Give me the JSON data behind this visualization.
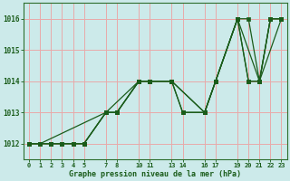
{
  "xlabel": "Graphe pression niveau de la mer (hPa)",
  "background_color": "#cceaea",
  "grid_color": "#e8aaaa",
  "line_color": "#1a5c1a",
  "spine_color": "#2d6e2d",
  "xlim": [
    -0.5,
    23.5
  ],
  "ylim": [
    1011.5,
    1016.5
  ],
  "yticks": [
    1012,
    1013,
    1014,
    1015,
    1016
  ],
  "xticks": [
    0,
    1,
    2,
    3,
    4,
    5,
    7,
    8,
    10,
    11,
    13,
    14,
    16,
    17,
    19,
    20,
    21,
    22,
    23
  ],
  "series": [
    {
      "x": [
        0,
        1,
        7,
        10,
        13,
        16,
        19,
        21,
        22,
        23
      ],
      "y": [
        1012,
        1012,
        1013,
        1014,
        1014,
        1013,
        1016,
        1014,
        1016,
        1016
      ]
    },
    {
      "x": [
        0,
        2,
        3,
        4,
        5,
        7,
        8,
        10,
        11,
        13,
        14,
        16,
        17,
        19,
        20,
        21,
        22,
        23
      ],
      "y": [
        1012,
        1012,
        1012,
        1012,
        1012,
        1013,
        1013,
        1014,
        1014,
        1014,
        1013,
        1013,
        1014,
        1016,
        1016,
        1014,
        1016,
        1016
      ]
    },
    {
      "x": [
        0,
        1,
        2,
        3,
        4,
        5,
        7,
        8,
        10,
        11,
        13,
        14,
        16,
        17,
        19,
        20,
        21,
        22,
        23
      ],
      "y": [
        1012,
        1012,
        1012,
        1012,
        1012,
        1012,
        1013,
        1013,
        1014,
        1014,
        1014,
        1013,
        1013,
        1014,
        1016,
        1014,
        1014,
        1016,
        1016
      ]
    },
    {
      "x": [
        0,
        2,
        5,
        7,
        8,
        10,
        11,
        13,
        16,
        17,
        19,
        20,
        21,
        23
      ],
      "y": [
        1012,
        1012,
        1012,
        1013,
        1013,
        1014,
        1014,
        1014,
        1013,
        1014,
        1016,
        1014,
        1014,
        1016
      ]
    }
  ]
}
